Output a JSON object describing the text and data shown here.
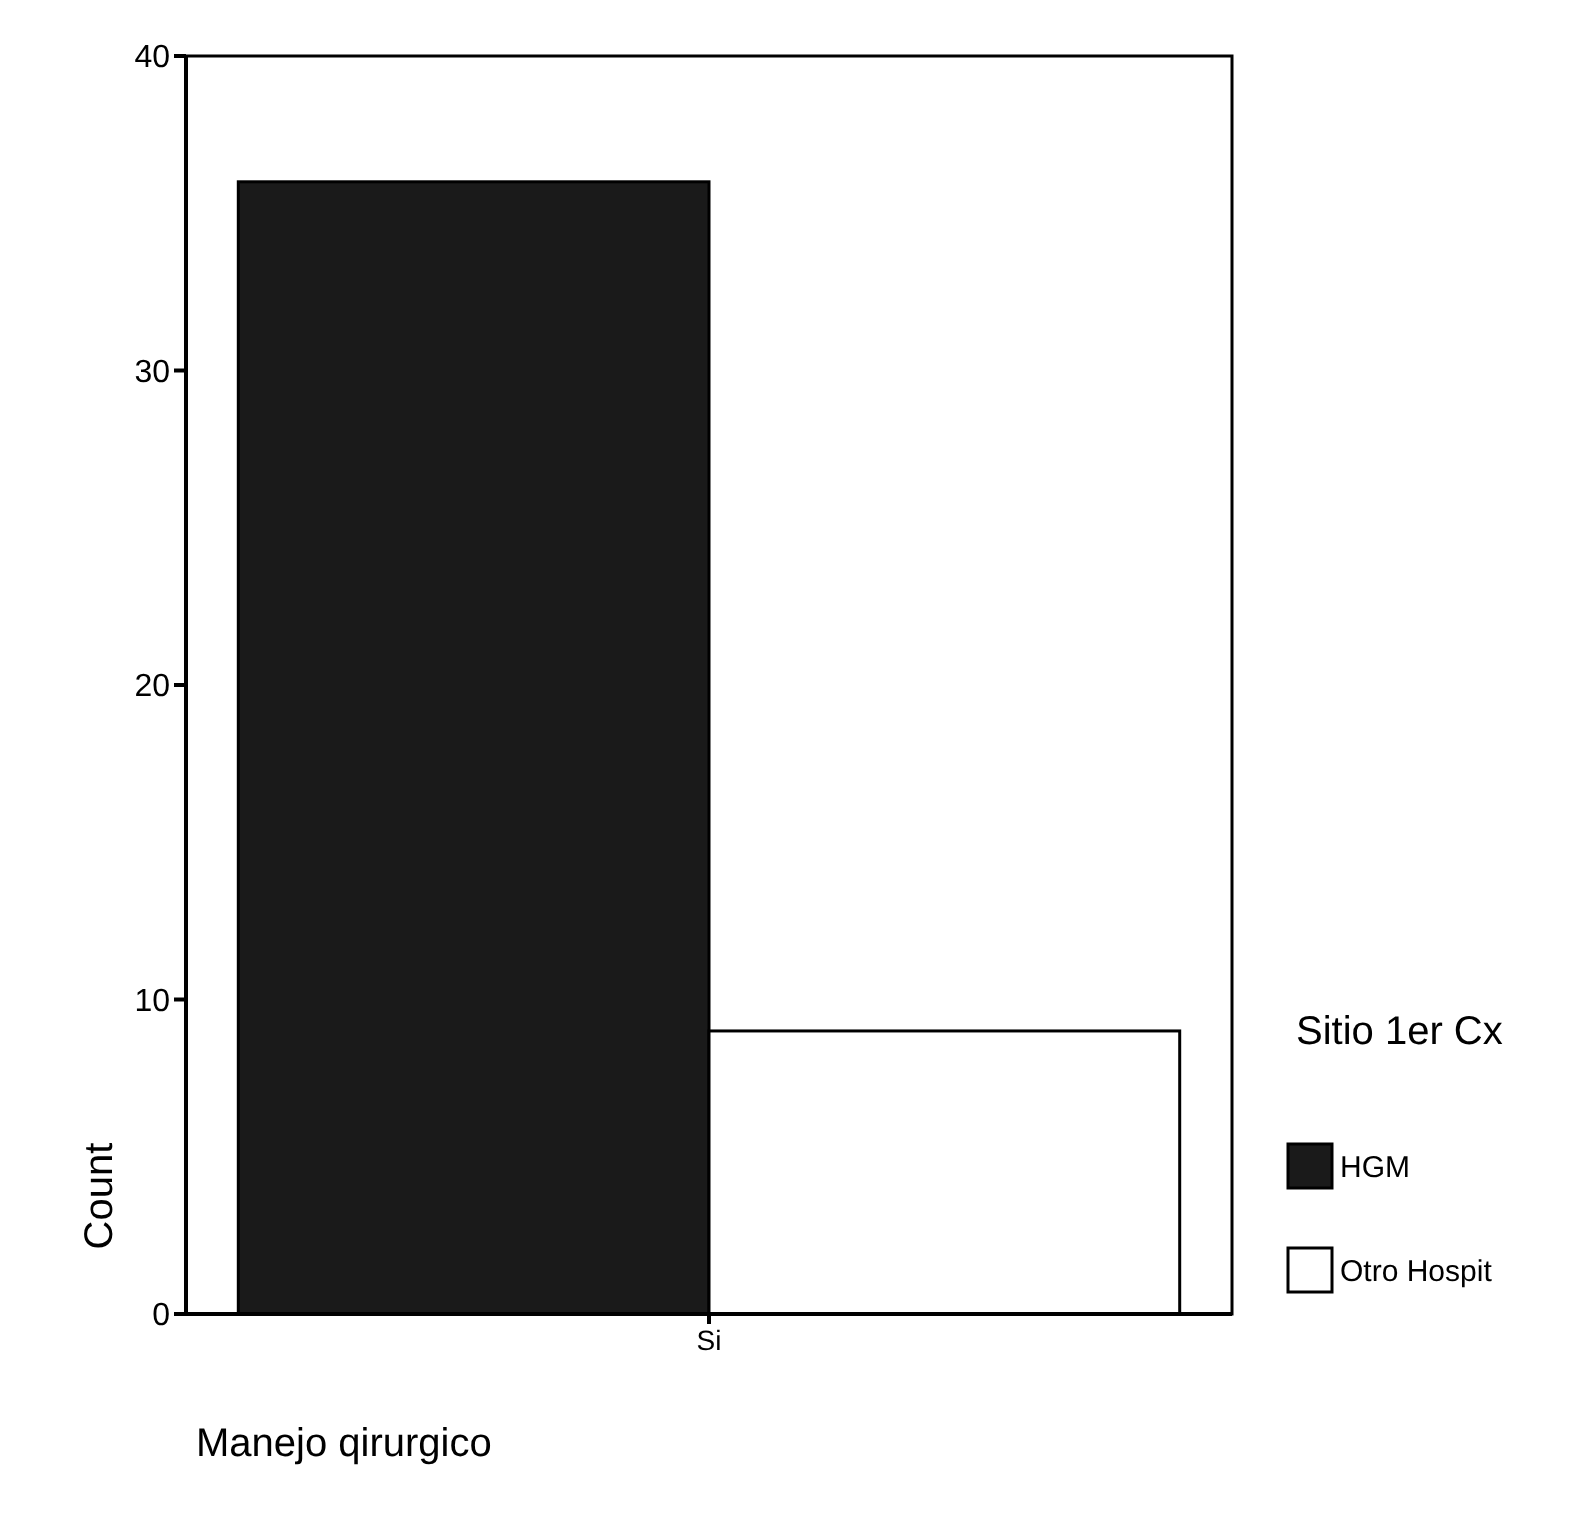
{
  "chart_data": {
    "type": "bar",
    "categories": [
      "Si"
    ],
    "series": [
      {
        "name": "HGM",
        "color": "#1a1a1a",
        "values": [
          36
        ]
      },
      {
        "name": "Otro Hospit",
        "color": "#ffffff",
        "values": [
          9
        ]
      }
    ],
    "xlabel": "Manejo qirurgico",
    "ylabel": "Count",
    "legend_title": "Sitio 1er Cx",
    "ylim": [
      0,
      40
    ],
    "yticks": [
      0,
      10,
      20,
      30,
      40
    ],
    "grid": false,
    "legend": "right"
  }
}
